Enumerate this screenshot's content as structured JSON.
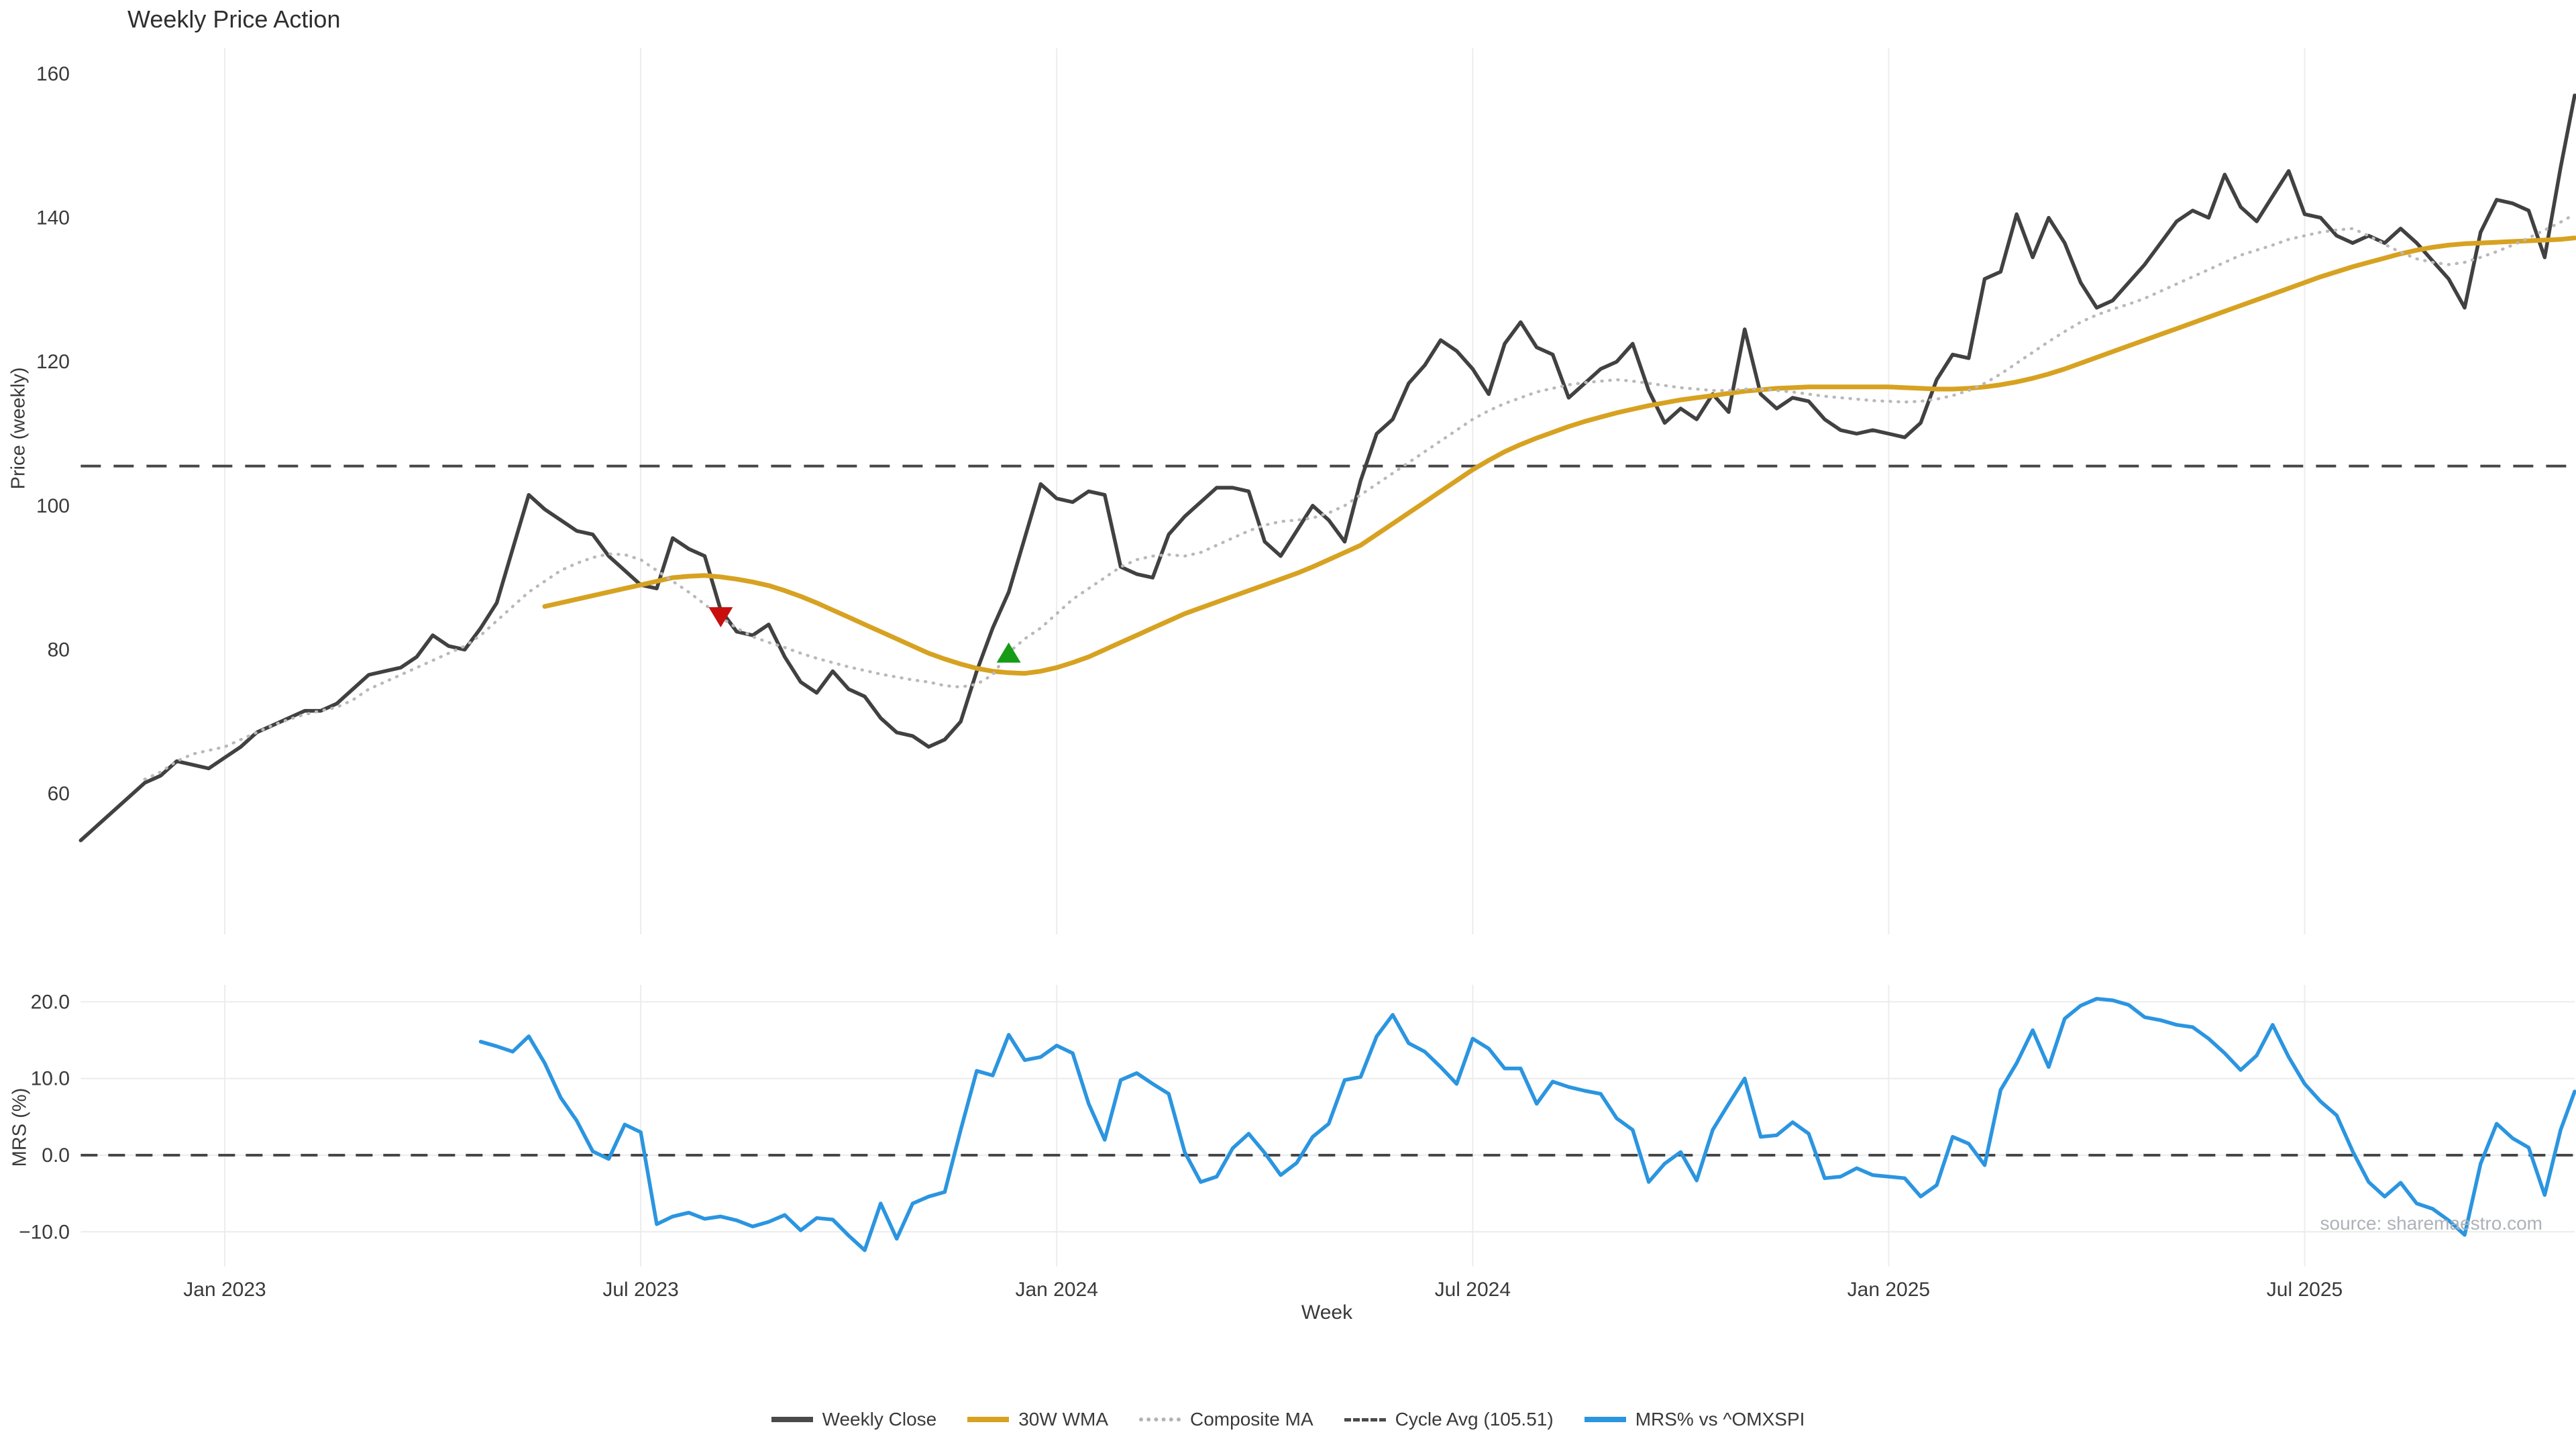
{
  "title": "Weekly Price Action",
  "source": "source: sharemaestro.com",
  "colors": {
    "weekly_close": "#414141",
    "wma": "#d7a221",
    "composite": "#b9b9b9",
    "cycle_avg": "#474747",
    "mrs": "#2b95e0",
    "sell_marker": "#c90e0e",
    "buy_marker": "#169c16",
    "gridline": "#ececec",
    "tick_text": "#3a3a3a"
  },
  "legend": [
    {
      "label": "Weekly Close",
      "style": "solid",
      "color": "#4a4a4a"
    },
    {
      "label": "30W WMA",
      "style": "solid",
      "color": "#d7a221"
    },
    {
      "label": "Composite MA",
      "style": "dotted",
      "color": "#b3b3b3"
    },
    {
      "label": "Cycle Avg (105.51)",
      "style": "dashed",
      "color": "#4a4a4a"
    },
    {
      "label": "MRS% vs ^OMXSPI",
      "style": "solid",
      "color": "#2b95e0"
    }
  ],
  "chart_data": {
    "type": "line",
    "title": "Weekly Price Action",
    "xlabel": "Week",
    "start_date": "2022-11-04",
    "week_interval_days": 7,
    "x_tick_weeks": [
      9,
      35,
      61,
      87,
      113,
      139
    ],
    "x_tick_labels": [
      "Jan 2023",
      "Jul 2023",
      "Jan 2024",
      "Jul 2024",
      "Jan 2025",
      "Jul 2025"
    ],
    "panels": [
      {
        "id": "price",
        "ylabel": "Price (weekly)",
        "ylim": [
          49.5,
          163.5
        ],
        "yticks": [
          160,
          140,
          120,
          100,
          80,
          60
        ],
        "ytick_labels": [
          "160",
          "140",
          "120",
          "100",
          "80",
          "60"
        ],
        "grid": "vertical-only",
        "hline": {
          "value": 105.51,
          "name": "Cycle Avg (105.51)",
          "style": "dashed"
        },
        "markers": [
          {
            "shape": "triangle-down",
            "name": "sell-signal",
            "color": "#c90e0e",
            "week": 40,
            "value": 84.5
          },
          {
            "shape": "triangle-up",
            "name": "buy-signal",
            "color": "#169c16",
            "week": 58,
            "value": 79.6
          }
        ],
        "series": [
          {
            "name": "Weekly Close",
            "color": "#414141",
            "width": 5.5,
            "dash": "solid",
            "values": [
              53.5,
              55.5,
              57.5,
              59.5,
              61.5,
              62.5,
              64.5,
              64.0,
              63.5,
              65.0,
              66.5,
              68.5,
              69.5,
              70.5,
              71.5,
              71.5,
              72.5,
              74.5,
              76.5,
              77.0,
              77.5,
              79.0,
              82.0,
              80.5,
              80.0,
              83.0,
              86.5,
              94.0,
              101.5,
              99.5,
              98.0,
              96.5,
              96.0,
              93.0,
              91.0,
              89.0,
              88.5,
              95.5,
              94.0,
              93.0,
              85.5,
              82.5,
              82.0,
              83.5,
              79.0,
              75.5,
              74.0,
              77.0,
              74.5,
              73.5,
              70.5,
              68.5,
              68.0,
              66.5,
              67.5,
              70.0,
              77.0,
              83.0,
              88.0,
              95.5,
              103.0,
              101.0,
              100.5,
              102.0,
              101.5,
              91.5,
              90.5,
              90.0,
              96.0,
              98.5,
              100.5,
              102.5,
              102.5,
              102.0,
              95.0,
              93.0,
              96.5,
              100.0,
              98.0,
              95.0,
              103.5,
              110.0,
              112.0,
              117.0,
              119.5,
              123.0,
              121.5,
              119.0,
              115.5,
              122.5,
              125.5,
              122.0,
              121.0,
              115.0,
              117.0,
              119.0,
              120.0,
              122.5,
              116.0,
              111.5,
              113.5,
              112.0,
              115.5,
              113.0,
              124.5,
              115.5,
              113.5,
              115.0,
              114.5,
              112.0,
              110.5,
              110.0,
              110.5,
              110.0,
              109.5,
              111.5,
              117.5,
              121.0,
              120.5,
              131.5,
              132.5,
              140.5,
              134.5,
              140.0,
              136.5,
              131.0,
              127.5,
              128.5,
              131.0,
              133.5,
              136.5,
              139.5,
              141.0,
              140.0,
              146.0,
              141.5,
              139.5,
              143.0,
              146.5,
              140.5,
              140.0,
              137.5,
              136.5,
              137.5,
              136.5,
              138.5,
              136.5,
              134.0,
              131.5,
              127.5,
              138.0,
              142.5,
              142.0,
              141.0,
              134.5,
              147.0,
              157.0
            ]
          },
          {
            "name": "30W WMA",
            "color": "#d7a221",
            "width": 7,
            "dash": "solid",
            "values": [
              null,
              null,
              null,
              null,
              null,
              null,
              null,
              null,
              null,
              null,
              null,
              null,
              null,
              null,
              null,
              null,
              null,
              null,
              null,
              null,
              null,
              null,
              null,
              null,
              null,
              null,
              null,
              null,
              null,
              86.0,
              86.5,
              87.0,
              87.5,
              88.0,
              88.5,
              89.0,
              89.5,
              90.0,
              90.2,
              90.3,
              90.1,
              89.8,
              89.4,
              88.9,
              88.2,
              87.4,
              86.5,
              85.5,
              84.5,
              83.5,
              82.5,
              81.5,
              80.5,
              79.5,
              78.7,
              78.0,
              77.4,
              77.0,
              76.8,
              76.7,
              77.0,
              77.5,
              78.2,
              79.0,
              80.0,
              81.0,
              82.0,
              83.0,
              84.0,
              85.0,
              85.8,
              86.6,
              87.4,
              88.2,
              89.0,
              89.8,
              90.6,
              91.5,
              92.5,
              93.5,
              94.5,
              96.0,
              97.5,
              99.0,
              100.5,
              102.0,
              103.5,
              105.0,
              106.3,
              107.5,
              108.5,
              109.4,
              110.2,
              111.0,
              111.7,
              112.3,
              112.9,
              113.4,
              113.9,
              114.3,
              114.7,
              115.0,
              115.3,
              115.6,
              115.9,
              116.1,
              116.3,
              116.4,
              116.5,
              116.5,
              116.5,
              116.5,
              116.5,
              116.5,
              116.4,
              116.3,
              116.2,
              116.2,
              116.3,
              116.5,
              116.8,
              117.2,
              117.7,
              118.3,
              119.0,
              119.8,
              120.6,
              121.4,
              122.2,
              123.0,
              123.8,
              124.6,
              125.4,
              126.2,
              127.0,
              127.8,
              128.6,
              129.4,
              130.2,
              131.0,
              131.8,
              132.5,
              133.2,
              133.8,
              134.4,
              135.0,
              135.5,
              135.9,
              136.2,
              136.4,
              136.5,
              136.6,
              136.7,
              136.8,
              136.9,
              137.0,
              137.2
            ]
          },
          {
            "name": "Composite MA",
            "color": "#b9b9b9",
            "width": 4.5,
            "dash": "dotted",
            "values": [
              null,
              null,
              null,
              null,
              62.0,
              63.0,
              64.5,
              65.5,
              66.0,
              66.5,
              67.5,
              68.5,
              69.5,
              70.3,
              71.0,
              71.5,
              72.0,
              73.0,
              74.5,
              75.5,
              76.5,
              77.5,
              78.5,
              79.5,
              80.5,
              82.0,
              84.0,
              86.0,
              88.0,
              89.5,
              91.0,
              92.0,
              92.8,
              93.3,
              93.2,
              92.5,
              91.0,
              89.5,
              88.0,
              86.3,
              84.5,
              83.0,
              81.8,
              81.0,
              80.3,
              79.5,
              78.8,
              78.2,
              77.6,
              77.1,
              76.6,
              76.2,
              75.8,
              75.5,
              75.0,
              74.8,
              75.2,
              76.5,
              79.6,
              81.5,
              83.0,
              85.0,
              87.0,
              88.5,
              90.0,
              91.5,
              92.5,
              93.0,
              93.2,
              93.0,
              93.5,
              94.5,
              95.5,
              96.5,
              97.3,
              97.8,
              98.0,
              98.3,
              99.0,
              100.0,
              101.5,
              103.0,
              104.5,
              106.0,
              107.5,
              109.0,
              110.5,
              112.0,
              113.2,
              114.2,
              115.0,
              115.8,
              116.3,
              116.8,
              117.1,
              117.3,
              117.5,
              117.3,
              117.0,
              116.7,
              116.4,
              116.2,
              116.0,
              116.0,
              116.2,
              116.2,
              116.0,
              115.8,
              115.5,
              115.2,
              115.0,
              114.8,
              114.6,
              114.5,
              114.4,
              114.5,
              114.8,
              115.3,
              116.0,
              117.0,
              118.3,
              119.8,
              121.3,
              122.8,
              124.2,
              125.5,
              126.5,
              127.3,
              128.0,
              128.8,
              129.8,
              130.8,
              131.8,
              132.8,
              133.8,
              134.8,
              135.5,
              136.2,
              137.0,
              137.5,
              138.0,
              138.3,
              138.5,
              137.5,
              136.3,
              135.2,
              134.3,
              133.8,
              133.5,
              133.8,
              134.5,
              135.3,
              136.2,
              137.2,
              138.3,
              139.4,
              140.5
            ]
          }
        ]
      },
      {
        "id": "mrs",
        "ylabel": "MRS (%)",
        "ylim": [
          -14.5,
          22.5
        ],
        "yticks": [
          20,
          10,
          0,
          -10
        ],
        "ytick_labels": [
          "20.0",
          "10.0",
          "0.0",
          "−10.0"
        ],
        "grid": "both",
        "hline": {
          "value": 0,
          "name": "zero-line",
          "style": "dashed"
        },
        "series": [
          {
            "name": "MRS% vs ^OMXSPI",
            "color": "#2b95e0",
            "width": 5.5,
            "dash": "solid",
            "values": [
              null,
              null,
              null,
              null,
              null,
              null,
              null,
              null,
              null,
              null,
              null,
              null,
              null,
              null,
              null,
              null,
              null,
              null,
              null,
              null,
              null,
              null,
              null,
              null,
              null,
              14.8,
              14.2,
              13.5,
              15.5,
              12.0,
              7.5,
              4.5,
              0.5,
              -0.5,
              4.0,
              3.0,
              -9.0,
              -8.0,
              -7.5,
              -8.3,
              -8.0,
              -8.5,
              -9.3,
              -8.7,
              -7.8,
              -9.8,
              -8.2,
              -8.4,
              -10.5,
              -12.4,
              -6.3,
              -10.9,
              -6.3,
              -5.4,
              -4.8,
              3.3,
              11.0,
              10.4,
              15.7,
              12.4,
              12.8,
              14.3,
              13.3,
              6.7,
              2.0,
              9.8,
              10.7,
              9.3,
              8.0,
              0.4,
              -3.5,
              -2.8,
              0.9,
              2.8,
              0.3,
              -2.6,
              -1.0,
              2.4,
              4.1,
              9.8,
              10.2,
              15.5,
              18.3,
              14.6,
              13.5,
              11.5,
              9.3,
              15.2,
              13.9,
              11.3,
              11.3,
              6.7,
              9.6,
              8.9,
              8.4,
              8.0,
              4.8,
              3.3,
              -3.5,
              -1.1,
              0.4,
              -3.3,
              3.3,
              6.7,
              10.0,
              2.4,
              2.6,
              4.3,
              2.8,
              -3.0,
              -2.8,
              -1.7,
              -2.6,
              -2.8,
              -3.0,
              -5.4,
              -3.9,
              2.4,
              1.5,
              -1.3,
              8.5,
              12.0,
              16.3,
              11.5,
              17.8,
              19.5,
              20.4,
              20.2,
              19.6,
              18.0,
              17.6,
              17.0,
              16.7,
              15.2,
              13.3,
              11.1,
              13.0,
              17.0,
              12.8,
              9.3,
              7.0,
              5.2,
              0.5,
              -3.5,
              -5.4,
              -3.6,
              -6.3,
              -7.0,
              -8.5,
              -10.4,
              -1.1,
              4.1,
              2.2,
              1.0,
              -5.2,
              3.3,
              8.3
            ]
          }
        ]
      }
    ],
    "legend_position": "bottom-center",
    "source_note": "source: sharemaestro.com"
  }
}
